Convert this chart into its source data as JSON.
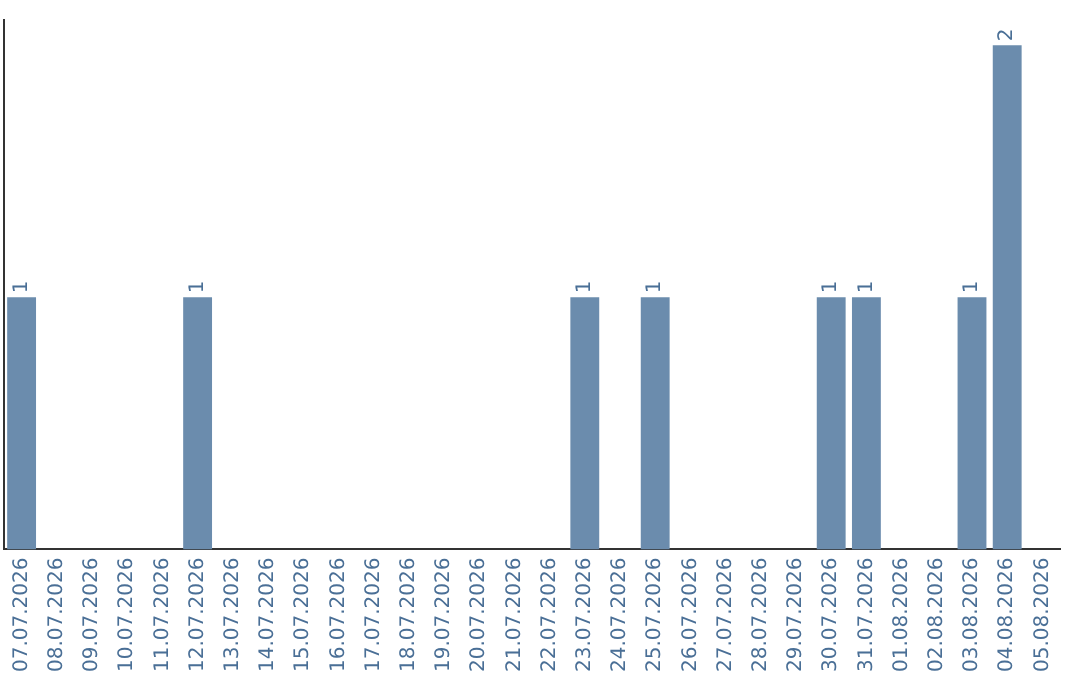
{
  "chart_data": {
    "type": "bar",
    "categories": [
      "07.07.2026",
      "08.07.2026",
      "09.07.2026",
      "10.07.2026",
      "11.07.2026",
      "12.07.2026",
      "13.07.2026",
      "14.07.2026",
      "15.07.2026",
      "16.07.2026",
      "17.07.2026",
      "18.07.2026",
      "19.07.2026",
      "20.07.2026",
      "21.07.2026",
      "22.07.2026",
      "23.07.2026",
      "24.07.2026",
      "25.07.2026",
      "26.07.2026",
      "27.07.2026",
      "28.07.2026",
      "29.07.2026",
      "30.07.2026",
      "31.07.2026",
      "01.08.2026",
      "02.08.2026",
      "03.08.2026",
      "04.08.2026",
      "05.08.2026"
    ],
    "values": [
      1,
      0,
      0,
      0,
      0,
      1,
      0,
      0,
      0,
      0,
      0,
      0,
      0,
      0,
      0,
      0,
      1,
      0,
      1,
      0,
      0,
      0,
      0,
      1,
      1,
      0,
      0,
      1,
      2,
      0
    ],
    "value_labels": [
      "1",
      null,
      null,
      null,
      null,
      "1",
      null,
      null,
      null,
      null,
      null,
      null,
      null,
      null,
      null,
      null,
      "1",
      null,
      "1",
      null,
      null,
      null,
      null,
      "1",
      "1",
      null,
      null,
      "1",
      "2",
      null
    ],
    "color": "#6b8cad",
    "ylim": [
      0,
      2.1
    ],
    "tick_labels": "x",
    "grid": false,
    "legend": false
  }
}
